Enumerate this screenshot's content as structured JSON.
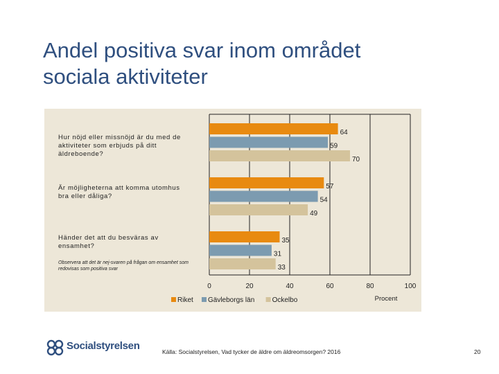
{
  "slide": {
    "title_line1": "Andel positiva svar inom området",
    "title_line2": "sociala aktiviteter",
    "note": "Observera att det är nej-svaren på frågan om ensamhet som redovisas som positiva svar",
    "source": "Källa: Socialstyrelsen, Vad tycker de äldre om äldreomsorgen? 2016",
    "page_number": "20",
    "logo_text": "Socialstyrelsen"
  },
  "chart_data": {
    "type": "bar",
    "orientation": "horizontal",
    "categories": [
      "Hur nöjd eller missnöjd är du med de aktiviteter som erbjuds på ditt äldreboende?",
      "Är möjligheterna att komma utomhus bra eller dåliga?",
      "Händer det att du besväras av ensamhet?"
    ],
    "series": [
      {
        "name": "Riket",
        "values": [
          64,
          57,
          35
        ],
        "color": "#e88a10"
      },
      {
        "name": "Gävleborgs län",
        "values": [
          59,
          54,
          31
        ],
        "color": "#7c9bb0"
      },
      {
        "name": "Ockelbo",
        "values": [
          70,
          49,
          33
        ],
        "color": "#d4c39c"
      }
    ],
    "xlim": [
      0,
      100
    ],
    "xticks": [
      0,
      20,
      40,
      60,
      80,
      100
    ],
    "xlabel": "Procent",
    "legend_position": "bottom",
    "grid": "vertical",
    "plot_background": "#ede7d8"
  }
}
